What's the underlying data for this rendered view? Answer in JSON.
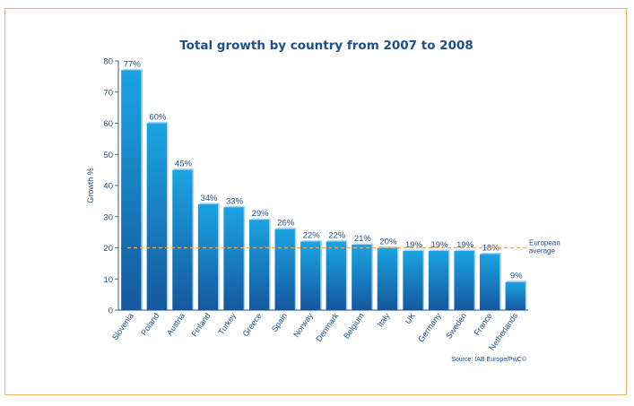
{
  "chart_data": {
    "type": "bar",
    "title": "Total growth by country from 2007 to 2008",
    "ylabel": "Growth %",
    "ylim": [
      0,
      80
    ],
    "yticks": [
      0,
      10,
      20,
      30,
      40,
      50,
      60,
      70,
      80
    ],
    "categories": [
      "Slovenia",
      "Poland",
      "Austria",
      "Finland",
      "Turkey",
      "Greece",
      "Spain",
      "Norway",
      "Denmark",
      "Belgium",
      "Italy",
      "UK",
      "Germany",
      "Sweden",
      "France",
      "Netherlands"
    ],
    "values": [
      77,
      60,
      45,
      34,
      33,
      29,
      26,
      22,
      22,
      21,
      20,
      19,
      19,
      19,
      18,
      9
    ],
    "value_labels": [
      "77%",
      "60%",
      "45%",
      "34%",
      "33%",
      "29%",
      "26%",
      "22%",
      "22%",
      "21%",
      "20%",
      "19%",
      "19%",
      "19%",
      "18%",
      "9%"
    ],
    "reference_line": {
      "value": 20,
      "label_lines": [
        "European",
        "average"
      ],
      "color": "#f0a868"
    },
    "source": "Source: IAB Europe/PwC©",
    "grid": false,
    "colors": {
      "bar_top": "#1aa4e2",
      "bar_bottom": "#15589e",
      "bar_highlight": "#a8d4f2",
      "text": "#1d4f8c",
      "frame": "#f0b25c",
      "axis": "#1d4f8c"
    }
  }
}
